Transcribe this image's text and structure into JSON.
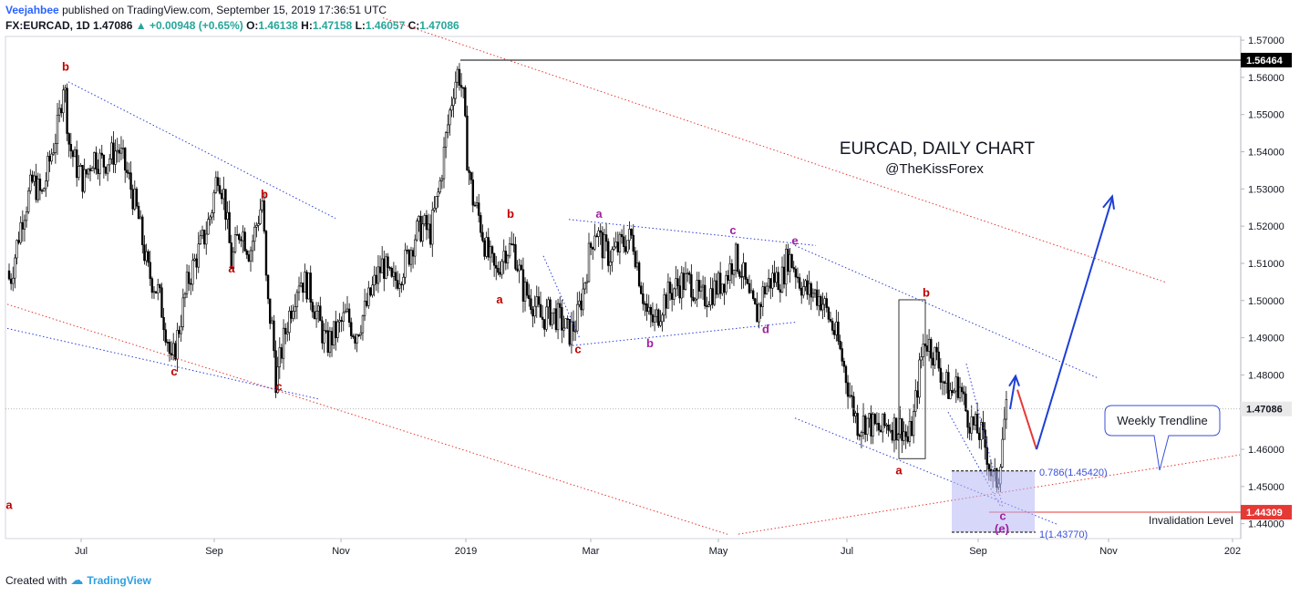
{
  "header": {
    "author": "Veejahbee",
    "published": "published on TradingView.com, September 15, 2019 17:36:51 UTC",
    "symbol": "FX:EURCAD, 1D",
    "last": "1.47086",
    "change": "+0.00948 (+0.65%)",
    "o_label": "O:",
    "o_val": "1.46138",
    "h_label": "H:",
    "h_val": "1.47158",
    "l_label": "L:",
    "l_val": "1.46057",
    "c_label": "C:",
    "c_val": "1.47086"
  },
  "footer": {
    "created_with": "Created with",
    "brand": "TradingView"
  },
  "chart_data": {
    "type": "candlestick",
    "title": "EURCAD, DAILY CHART",
    "subtitle": "@TheKissForex",
    "ylim": [
      1.436,
      1.571
    ],
    "y_ticks": [
      "1.57000",
      "1.56000",
      "1.55000",
      "1.54000",
      "1.53000",
      "1.52000",
      "1.51000",
      "1.50000",
      "1.49000",
      "1.48000",
      "1.47000",
      "1.46000",
      "1.45000",
      "1.44000"
    ],
    "x_ticks": [
      "Jul",
      "Sep",
      "Nov",
      "2019",
      "Mar",
      "May",
      "Jul",
      "Sep",
      "Nov",
      "202"
    ],
    "price_tags": [
      {
        "label": "1.56464",
        "value": 1.56464,
        "color": "#000000"
      },
      {
        "label": "1.47086",
        "value": 1.47086,
        "color": "#e9e9e9"
      },
      {
        "label": "1.44309",
        "value": 1.44309,
        "color": "#e53935"
      }
    ],
    "path": [
      [
        0,
        1.5
      ],
      [
        6,
        1.512
      ],
      [
        13,
        1.505
      ],
      [
        26,
        1.522
      ],
      [
        38,
        1.532
      ],
      [
        48,
        1.528
      ],
      [
        58,
        1.539
      ],
      [
        66,
        1.547
      ],
      [
        72,
        1.56
      ],
      [
        78,
        1.542
      ],
      [
        86,
        1.536
      ],
      [
        94,
        1.532
      ],
      [
        104,
        1.539
      ],
      [
        116,
        1.537
      ],
      [
        132,
        1.541
      ],
      [
        144,
        1.532
      ],
      [
        154,
        1.522
      ],
      [
        164,
        1.508
      ],
      [
        176,
        1.502
      ],
      [
        186,
        1.49
      ],
      [
        190,
        1.482
      ],
      [
        198,
        1.492
      ],
      [
        208,
        1.505
      ],
      [
        218,
        1.512
      ],
      [
        226,
        1.517
      ],
      [
        234,
        1.524
      ],
      [
        241,
        1.535
      ],
      [
        248,
        1.528
      ],
      [
        256,
        1.51
      ],
      [
        266,
        1.52
      ],
      [
        276,
        1.513
      ],
      [
        284,
        1.521
      ],
      [
        290,
        1.527
      ],
      [
        295,
        1.5
      ],
      [
        301,
        1.492
      ],
      [
        305,
        1.478
      ],
      [
        312,
        1.488
      ],
      [
        320,
        1.497
      ],
      [
        330,
        1.506
      ],
      [
        340,
        1.504
      ],
      [
        350,
        1.496
      ],
      [
        360,
        1.488
      ],
      [
        372,
        1.492
      ],
      [
        382,
        1.496
      ],
      [
        392,
        1.491
      ],
      [
        402,
        1.497
      ],
      [
        412,
        1.504
      ],
      [
        422,
        1.51
      ],
      [
        432,
        1.504
      ],
      [
        442,
        1.508
      ],
      [
        450,
        1.512
      ],
      [
        458,
        1.518
      ],
      [
        466,
        1.52
      ],
      [
        474,
        1.518
      ],
      [
        484,
        1.53
      ],
      [
        492,
        1.545
      ],
      [
        500,
        1.558
      ],
      [
        505,
        1.562
      ],
      [
        510,
        1.555
      ],
      [
        514,
        1.54
      ],
      [
        520,
        1.528
      ],
      [
        528,
        1.522
      ],
      [
        536,
        1.513
      ],
      [
        546,
        1.507
      ],
      [
        556,
        1.514
      ],
      [
        566,
        1.514
      ],
      [
        576,
        1.503
      ],
      [
        586,
        1.5
      ],
      [
        596,
        1.495
      ],
      [
        606,
        1.497
      ],
      [
        616,
        1.495
      ],
      [
        626,
        1.491
      ],
      [
        634,
        1.494
      ],
      [
        642,
        1.503
      ],
      [
        648,
        1.512
      ],
      [
        655,
        1.52
      ],
      [
        662,
        1.515
      ],
      [
        670,
        1.512
      ],
      [
        680,
        1.514
      ],
      [
        688,
        1.516
      ],
      [
        696,
        1.517
      ],
      [
        704,
        1.506
      ],
      [
        712,
        1.496
      ],
      [
        720,
        1.494
      ],
      [
        730,
        1.5
      ],
      [
        740,
        1.503
      ],
      [
        750,
        1.505
      ],
      [
        760,
        1.505
      ],
      [
        770,
        1.5
      ],
      [
        780,
        1.502
      ],
      [
        790,
        1.504
      ],
      [
        800,
        1.507
      ],
      [
        808,
        1.512
      ],
      [
        816,
        1.508
      ],
      [
        824,
        1.5
      ],
      [
        832,
        1.496
      ],
      [
        840,
        1.503
      ],
      [
        850,
        1.506
      ],
      [
        860,
        1.506
      ],
      [
        866,
        1.512
      ],
      [
        872,
        1.51
      ],
      [
        880,
        1.505
      ],
      [
        888,
        1.502
      ],
      [
        896,
        1.502
      ],
      [
        904,
        1.5
      ],
      [
        912,
        1.495
      ],
      [
        920,
        1.49
      ],
      [
        928,
        1.482
      ],
      [
        936,
        1.473
      ],
      [
        944,
        1.466
      ],
      [
        952,
        1.468
      ],
      [
        960,
        1.466
      ],
      [
        968,
        1.465
      ],
      [
        976,
        1.467
      ],
      [
        984,
        1.466
      ],
      [
        992,
        1.466
      ],
      [
        998,
        1.462
      ],
      [
        1004,
        1.468
      ],
      [
        1010,
        1.48
      ],
      [
        1016,
        1.49
      ],
      [
        1022,
        1.488
      ],
      [
        1030,
        1.484
      ],
      [
        1038,
        1.478
      ],
      [
        1046,
        1.475
      ],
      [
        1054,
        1.478
      ],
      [
        1062,
        1.47
      ],
      [
        1070,
        1.466
      ],
      [
        1078,
        1.464
      ],
      [
        1084,
        1.46
      ],
      [
        1088,
        1.455
      ],
      [
        1092,
        1.451
      ],
      [
        1097,
        1.452
      ],
      [
        1101,
        1.462
      ],
      [
        1105,
        1.47
      ]
    ]
  },
  "annotations": {
    "labels": [
      {
        "text": "a",
        "color": "#c00000",
        "v": 1.445,
        "x": 1088
      },
      {
        "text": "b",
        "color": "#c00000",
        "v": 1.5628,
        "x": 72
      },
      {
        "text": "a",
        "color": "#c00000",
        "v": 1.5085,
        "x": 254
      },
      {
        "text": "b",
        "color": "#c00000",
        "v": 1.5285,
        "x": 290
      },
      {
        "text": "c",
        "color": "#c00000",
        "v": 1.4808,
        "x": 191
      },
      {
        "text": "c",
        "color": "#c00000",
        "v": 1.4768,
        "x": 306
      },
      {
        "text": "a",
        "color": "#c00000",
        "v": 1.5002,
        "x": 548
      },
      {
        "text": "b",
        "color": "#c00000",
        "v": 1.5232,
        "x": 560
      },
      {
        "text": "c",
        "color": "#c00000",
        "v": 1.4868,
        "x": 634
      },
      {
        "text": "a",
        "color": "#a020a0",
        "v": 1.5232,
        "x": 657
      },
      {
        "text": "b",
        "color": "#a020a0",
        "v": 1.4884,
        "x": 713
      },
      {
        "text": "c",
        "color": "#a020a0",
        "v": 1.5188,
        "x": 804
      },
      {
        "text": "d",
        "color": "#a020a0",
        "v": 1.4922,
        "x": 840
      },
      {
        "text": "e",
        "color": "#a020a0",
        "v": 1.516,
        "x": 872
      },
      {
        "text": "b",
        "color": "#c00000",
        "v": 1.502,
        "x": 1016
      },
      {
        "text": "a",
        "color": "#c00000",
        "v": 1.4542,
        "x": 986
      },
      {
        "text": "c",
        "color": "#a020a0",
        "v": 1.442,
        "x": 1100
      },
      {
        "text": "(e)",
        "color": "#a020a0",
        "v": 1.4386,
        "x": 1099
      }
    ],
    "fib_upper": "0.786(1.45420)",
    "fib_lower": "1(1.43770)",
    "invalidation": "Invalidation Level",
    "callout": "Weekly Trendline"
  },
  "colors": {
    "bull": "#ffffff",
    "bear": "#000000",
    "red_line": "#e53935",
    "blue_dots": "#2a3fd6",
    "forecast_blue": "#1d3fd6",
    "forecast_red": "#e53935",
    "box_fill": "#b7b7f4"
  }
}
